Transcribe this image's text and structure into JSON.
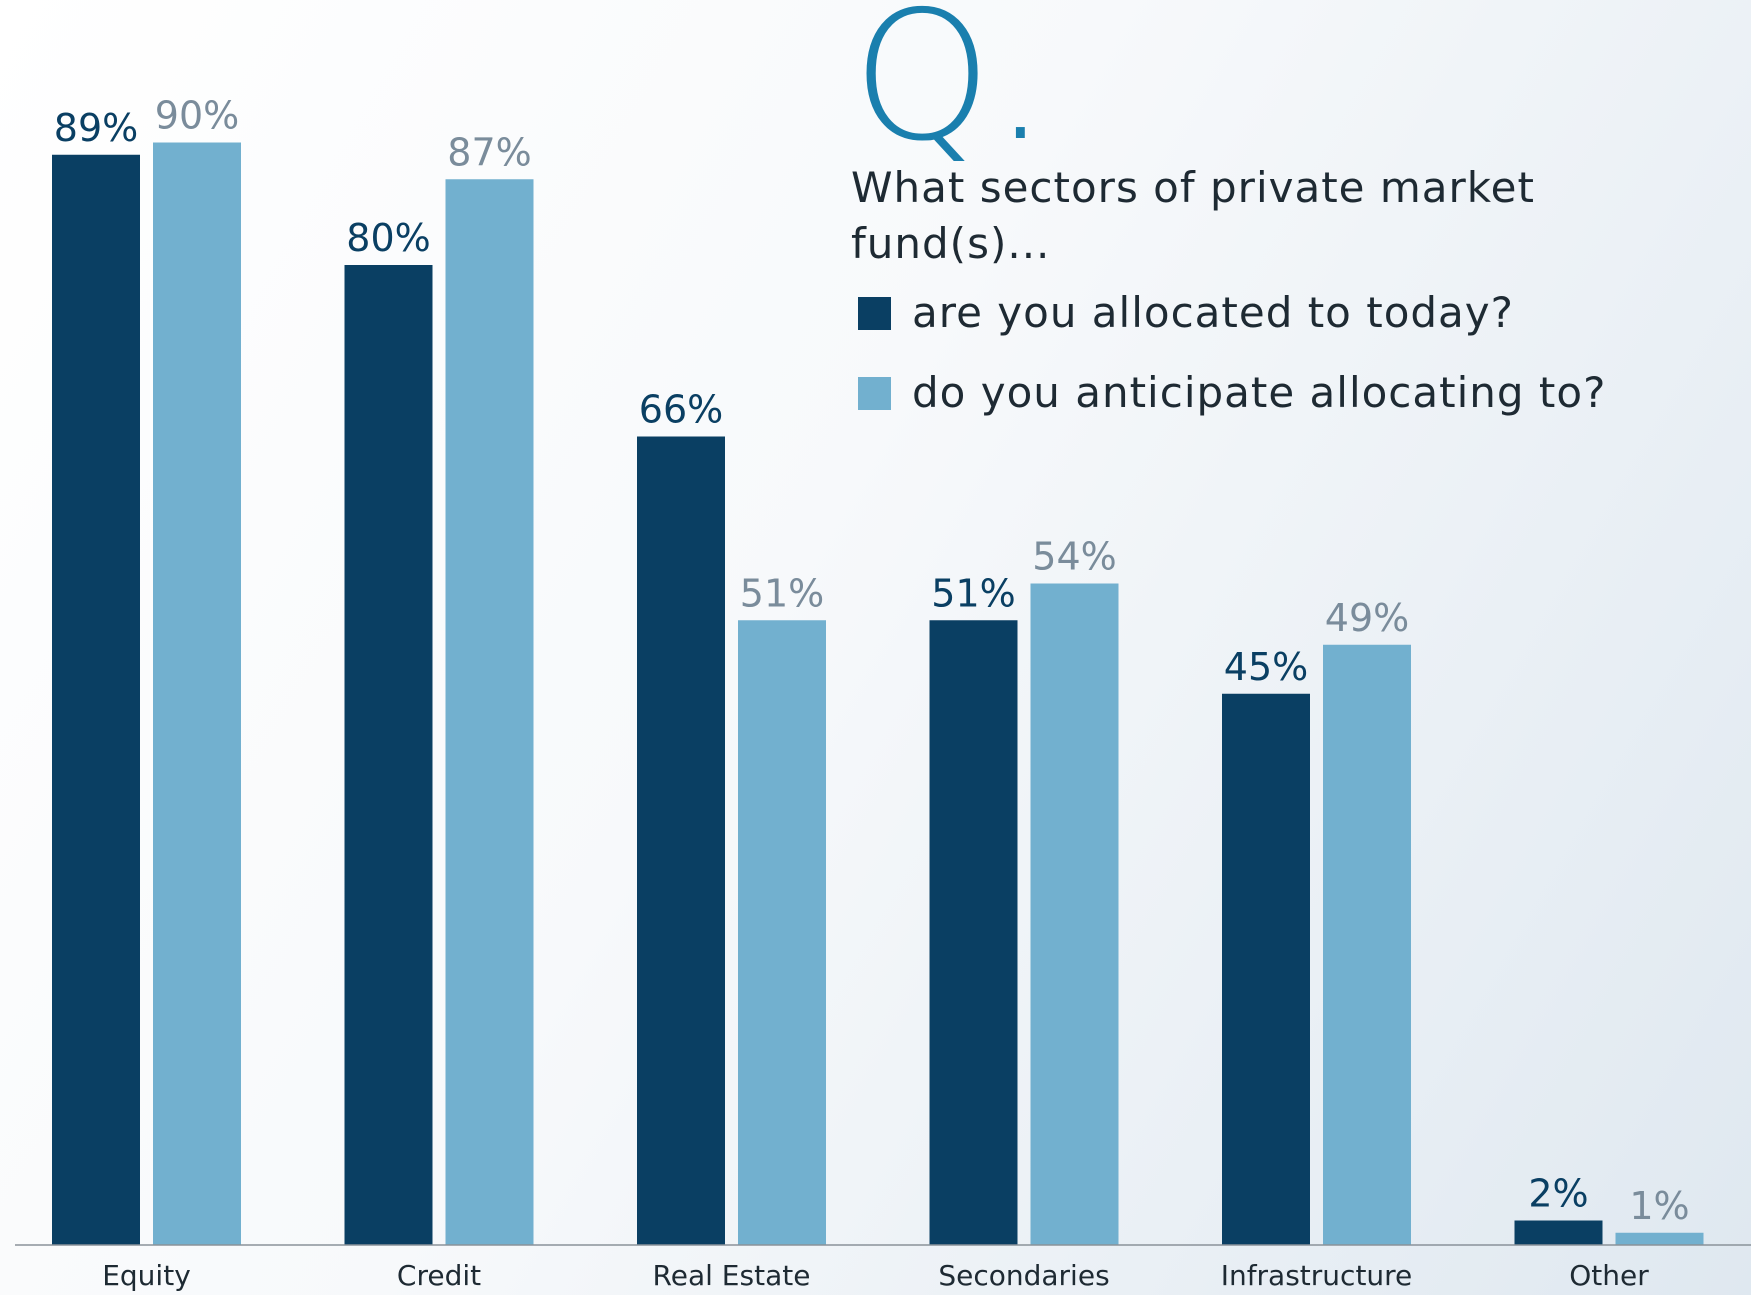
{
  "chart_data": {
    "type": "bar",
    "title": "Q.",
    "subtitle": "What sectors of private market fund(s)...",
    "categories": [
      "Equity",
      "Credit",
      "Real Estate",
      "Secondaries",
      "Infrastructure",
      "Other"
    ],
    "series": [
      {
        "name": "are you allocated to today?",
        "color": "#0a3f63",
        "label_color": "#0a3f63",
        "values": [
          89,
          80,
          66,
          51,
          45,
          2
        ],
        "value_labels": [
          "89%",
          "80%",
          "66%",
          "51%",
          "45%",
          "2%"
        ]
      },
      {
        "name": "do you anticipate allocating to?",
        "color": "#72b0cf",
        "label_color": "#7a8c9b",
        "values": [
          90,
          87,
          51,
          54,
          49,
          1
        ],
        "value_labels": [
          "90%",
          "87%",
          "51%",
          "54%",
          "49%",
          "1%"
        ]
      }
    ],
    "ylim": [
      0,
      100
    ]
  }
}
